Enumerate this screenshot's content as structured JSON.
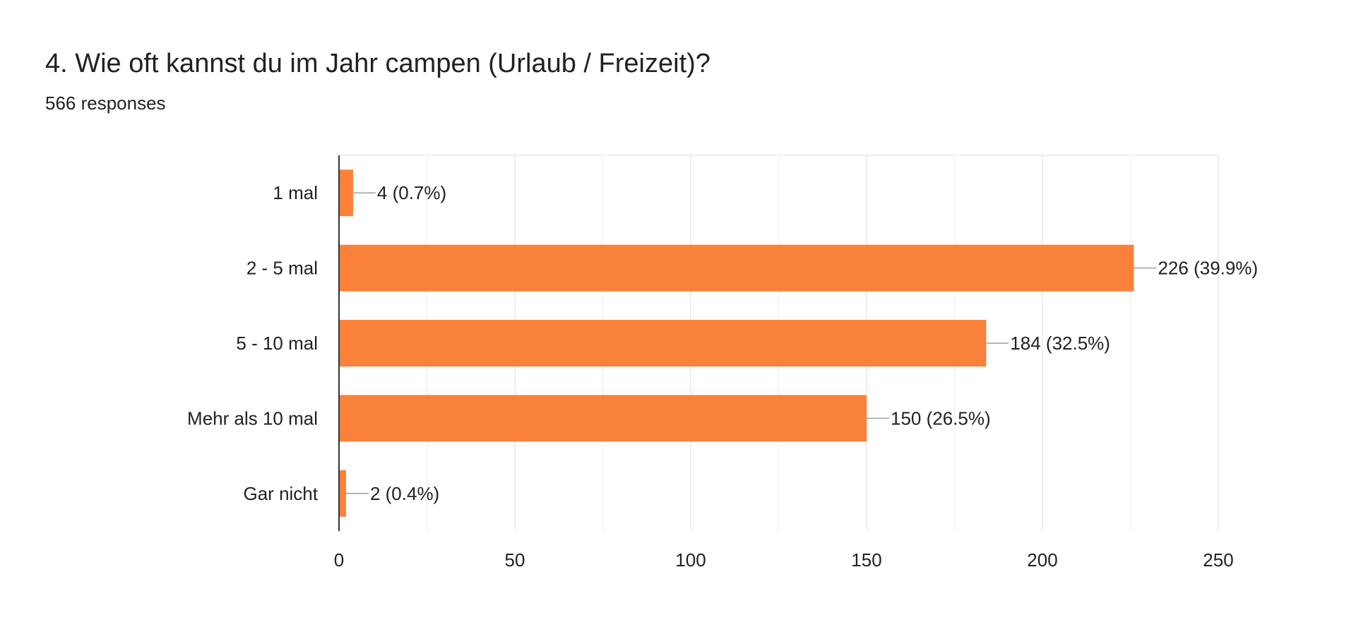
{
  "header": {
    "title": "4. Wie oft kannst du im Jahr campen (Urlaub / Freizeit)?",
    "responses": "566 responses"
  },
  "colors": {
    "bar": "#f9813a",
    "grid": "#e8e8e8",
    "axis": "#333333",
    "leader": "#9e9e9e"
  },
  "chart_data": {
    "type": "bar",
    "orientation": "horizontal",
    "title": "4. Wie oft kannst du im Jahr campen (Urlaub / Freizeit)?",
    "subtitle": "566 responses",
    "categories": [
      "1 mal",
      "2 - 5 mal",
      "5 - 10 mal",
      "Mehr als 10 mal",
      "Gar nicht"
    ],
    "values": [
      4,
      226,
      184,
      150,
      2
    ],
    "data_labels": [
      "4 (0.7%)",
      "226 (39.9%)",
      "184 (32.5%)",
      "150 (26.5%)",
      "2 (0.4%)"
    ],
    "xlim": [
      0,
      250
    ],
    "xticks": [
      0,
      50,
      100,
      150,
      200,
      250
    ],
    "minor_gridlines": true,
    "grid": true,
    "legend": "none"
  }
}
